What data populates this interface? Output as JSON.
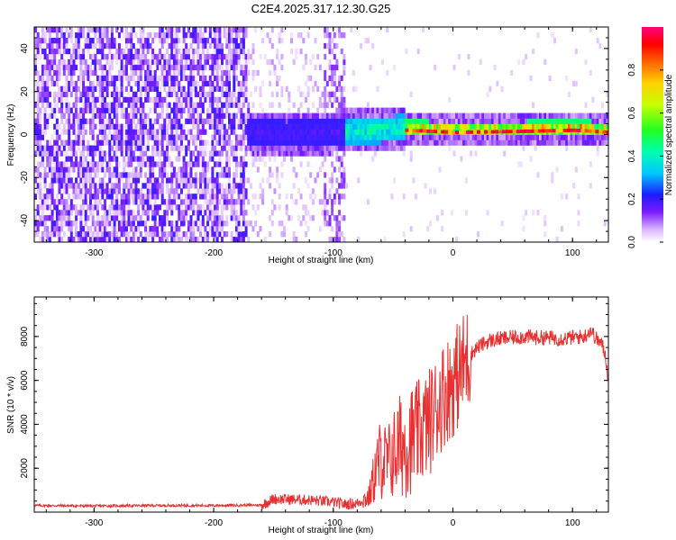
{
  "title": "C2E4.2025.317.12.30.G25",
  "chart_data": [
    {
      "type": "heatmap",
      "xlabel": "Height of straight line (km)",
      "ylabel": "Frequency (Hz)",
      "xlim": [
        -350,
        130
      ],
      "ylim": [
        -50,
        50
      ],
      "x_ticks": [
        -300,
        -200,
        -100,
        0,
        100
      ],
      "x_tick_labels": [
        "-300",
        "-200",
        "-100",
        "0",
        "100"
      ],
      "y_ticks": [
        -40,
        -20,
        0,
        20,
        40
      ],
      "y_tick_labels": [
        "-40",
        "-20",
        "0",
        "20",
        "40"
      ],
      "colorbar": {
        "label": "Normalized spectral amplitude",
        "range": [
          0,
          1
        ],
        "ticks": [
          0,
          0.2,
          0.4,
          0.6,
          0.8
        ],
        "tick_labels": [
          "0.0",
          "0.2",
          "0.4",
          "0.6",
          "0.8"
        ],
        "colormap": "rainbow (white/violet to red/magenta)"
      },
      "regions": [
        {
          "x_range": [
            -350,
            -173
          ],
          "description": "broadband noise",
          "amplitude": 0.15
        },
        {
          "x_range": [
            -173,
            -90
          ],
          "description": "weak noise with faint signal near 0 Hz",
          "amplitude": 0.06
        },
        {
          "x_range": [
            -90,
            -40
          ],
          "description": "emerging carrier near 0 Hz",
          "amplitude": 0.4
        },
        {
          "x_range": [
            -40,
            130
          ],
          "description": "strong narrow carrier near 0-2 Hz",
          "amplitude": 0.85
        }
      ],
      "carrier_frequency_hz": [
        [
          -170,
          0
        ],
        [
          -140,
          -1
        ],
        [
          -100,
          0
        ],
        [
          -60,
          1
        ],
        [
          -40,
          2
        ],
        [
          0,
          1
        ],
        [
          60,
          1.5
        ],
        [
          100,
          2
        ],
        [
          130,
          1
        ]
      ]
    },
    {
      "type": "line",
      "xlabel": "Height of straight line (km)",
      "ylabel": "SNR (10 * v/v)",
      "xlim": [
        -350,
        130
      ],
      "ylim": [
        0,
        9800
      ],
      "x_ticks": [
        -300,
        -200,
        -100,
        0,
        100
      ],
      "x_tick_labels": [
        "-300",
        "-200",
        "-100",
        "0",
        "100"
      ],
      "y_ticks": [
        2000,
        4000,
        6000,
        8000
      ],
      "y_tick_labels": [
        "2000",
        "4000",
        "6000",
        "8000"
      ],
      "series": [
        {
          "color": "#e83030",
          "x": [
            -350,
            -300,
            -250,
            -200,
            -160,
            -150,
            -120,
            -100,
            -90,
            -80,
            -70,
            -65,
            -60,
            -55,
            -50,
            -45,
            -40,
            -35,
            -30,
            -25,
            -20,
            -15,
            -10,
            -5,
            0,
            5,
            10,
            15,
            20,
            30,
            40,
            50,
            60,
            70,
            80,
            90,
            100,
            110,
            115,
            120,
            125,
            128,
            130
          ],
          "y": [
            300,
            280,
            300,
            300,
            320,
            600,
            550,
            450,
            350,
            400,
            700,
            1800,
            2500,
            2200,
            2600,
            3000,
            3100,
            3300,
            3500,
            3800,
            4100,
            4600,
            5200,
            5600,
            5900,
            6300,
            6800,
            7200,
            7500,
            7800,
            7900,
            7950,
            8000,
            7950,
            7950,
            7900,
            7950,
            8000,
            8300,
            7900,
            7600,
            7000,
            6000
          ]
        }
      ]
    }
  ]
}
